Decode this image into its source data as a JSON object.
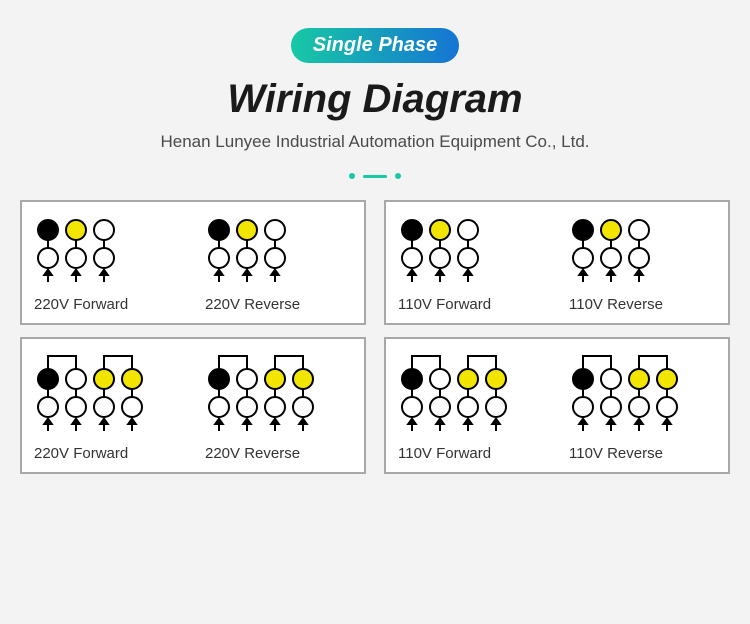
{
  "header": {
    "badge": "Single Phase",
    "badge_gradient": [
      "#17c9a4",
      "#1574d4"
    ],
    "title": "Wiring Diagram",
    "subtitle": "Henan Lunyee Industrial Automation Equipment Co., Ltd.",
    "accent_color": "#17c9a4"
  },
  "style": {
    "background": "#f2f3f2",
    "panel_border": "#a8a8a8",
    "stroke": "#000000",
    "arrow_fill": "#000000",
    "fill_black": "#000000",
    "fill_yellow": "#f2e500",
    "fill_white": "#ffffff",
    "circle_r": 10,
    "circle_stroke_w": 2,
    "wire_stroke_w": 2,
    "col_spacing": 28,
    "row_spacing": 28,
    "arrow_size": 8
  },
  "panels": [
    {
      "columns": 3,
      "cells": [
        {
          "caption": "220V Forward",
          "top_fills": [
            "black",
            "yellow",
            "white"
          ],
          "arrows": [
            0,
            1,
            2
          ],
          "bridges": []
        },
        {
          "caption": "220V Reverse",
          "top_fills": [
            "black",
            "yellow",
            "white"
          ],
          "arrows": [
            0,
            1,
            2
          ],
          "bridges": []
        }
      ]
    },
    {
      "columns": 3,
      "cells": [
        {
          "caption": "110V Forward",
          "top_fills": [
            "black",
            "yellow",
            "white"
          ],
          "arrows": [
            0,
            1,
            2
          ],
          "bridges": []
        },
        {
          "caption": "110V Reverse",
          "top_fills": [
            "black",
            "yellow",
            "white"
          ],
          "arrows": [
            0,
            1,
            2
          ],
          "bridges": []
        }
      ]
    },
    {
      "columns": 4,
      "cells": [
        {
          "caption": "220V Forward",
          "top_fills": [
            "black",
            "white",
            "yellow",
            "yellow"
          ],
          "arrows": [
            0,
            1,
            2,
            3
          ],
          "bridges": [
            [
              0,
              1
            ],
            [
              2,
              3
            ]
          ]
        },
        {
          "caption": "220V Reverse",
          "top_fills": [
            "black",
            "white",
            "yellow",
            "yellow"
          ],
          "arrows": [
            0,
            1,
            2,
            3
          ],
          "bridges": [
            [
              0,
              1
            ],
            [
              2,
              3
            ]
          ]
        }
      ]
    },
    {
      "columns": 4,
      "cells": [
        {
          "caption": "110V Forward",
          "top_fills": [
            "black",
            "white",
            "yellow",
            "yellow"
          ],
          "arrows": [
            0,
            1,
            2,
            3
          ],
          "bridges": [
            [
              0,
              1
            ],
            [
              2,
              3
            ]
          ]
        },
        {
          "caption": "110V Reverse",
          "top_fills": [
            "black",
            "white",
            "yellow",
            "yellow"
          ],
          "arrows": [
            0,
            1,
            2,
            3
          ],
          "bridges": [
            [
              0,
              1
            ],
            [
              2,
              3
            ]
          ]
        }
      ]
    }
  ]
}
